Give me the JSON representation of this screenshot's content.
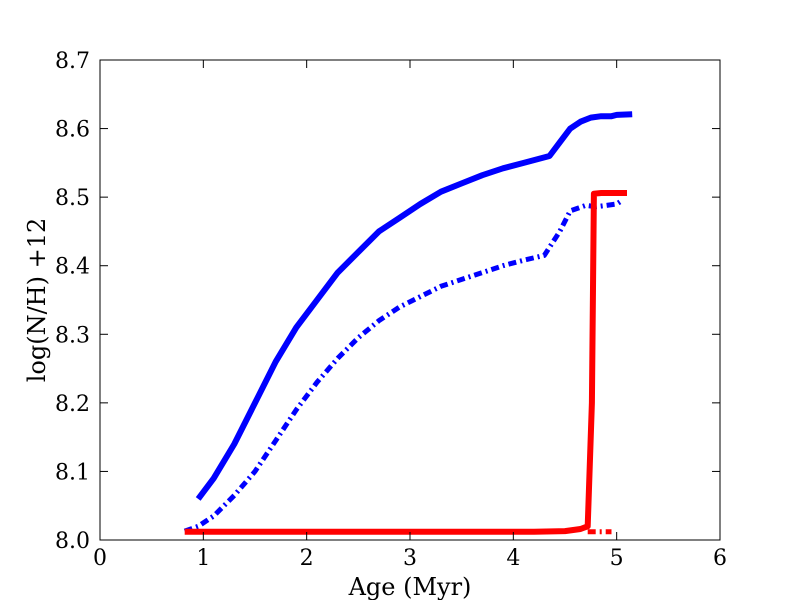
{
  "chart_data": {
    "type": "line",
    "title": "",
    "xlabel": "Age (Myr)",
    "ylabel": "log(N/H) +12",
    "xlim": [
      0,
      6
    ],
    "ylim": [
      8.0,
      8.7
    ],
    "xticks": [
      0,
      1,
      2,
      3,
      4,
      5,
      6
    ],
    "xtick_labels": [
      "0",
      "1",
      "2",
      "3",
      "4",
      "5",
      "6"
    ],
    "yticks": [
      8.0,
      8.1,
      8.2,
      8.3,
      8.4,
      8.5,
      8.6,
      8.7
    ],
    "ytick_labels": [
      "8.0",
      "8.1",
      "8.2",
      "8.3",
      "8.4",
      "8.5",
      "8.6",
      "8.7"
    ],
    "grid": false,
    "legend": "none",
    "series": [
      {
        "color": "#0000ff",
        "style": "solid",
        "x": [
          0.95,
          1.1,
          1.3,
          1.5,
          1.7,
          1.9,
          2.1,
          2.3,
          2.5,
          2.7,
          2.9,
          3.1,
          3.3,
          3.5,
          3.7,
          3.9,
          4.1,
          4.35,
          4.45,
          4.55,
          4.65,
          4.75,
          4.85,
          4.95,
          5.0,
          5.15
        ],
        "y": [
          8.06,
          8.09,
          8.14,
          8.2,
          8.26,
          8.31,
          8.35,
          8.39,
          8.42,
          8.45,
          8.47,
          8.49,
          8.508,
          8.52,
          8.532,
          8.542,
          8.55,
          8.56,
          8.58,
          8.6,
          8.61,
          8.616,
          8.618,
          8.618,
          8.62,
          8.621
        ]
      },
      {
        "color": "#0000ff",
        "style": "dashdot",
        "x": [
          0.82,
          0.95,
          1.1,
          1.3,
          1.5,
          1.7,
          1.9,
          2.1,
          2.3,
          2.5,
          2.7,
          2.9,
          3.1,
          3.3,
          3.5,
          3.7,
          3.9,
          4.1,
          4.3,
          4.45,
          4.55,
          4.7,
          4.8,
          4.9,
          5.0,
          5.05
        ],
        "y": [
          8.013,
          8.02,
          8.035,
          8.065,
          8.1,
          8.145,
          8.19,
          8.23,
          8.265,
          8.295,
          8.32,
          8.34,
          8.355,
          8.37,
          8.38,
          8.39,
          8.4,
          8.408,
          8.415,
          8.45,
          8.48,
          8.488,
          8.486,
          8.488,
          8.49,
          8.495
        ]
      },
      {
        "color": "#ff0000",
        "style": "solid",
        "x": [
          0.82,
          1.5,
          2.5,
          3.5,
          4.2,
          4.5,
          4.65,
          4.72,
          4.76,
          4.78,
          4.85,
          5.0,
          5.1
        ],
        "y": [
          8.012,
          8.012,
          8.012,
          8.012,
          8.012,
          8.013,
          8.016,
          8.02,
          8.2,
          8.505,
          8.506,
          8.506,
          8.506
        ]
      },
      {
        "color": "#ff0000",
        "style": "dashdot",
        "x": [
          4.72,
          4.95
        ],
        "y": [
          8.012,
          8.012
        ]
      }
    ]
  }
}
